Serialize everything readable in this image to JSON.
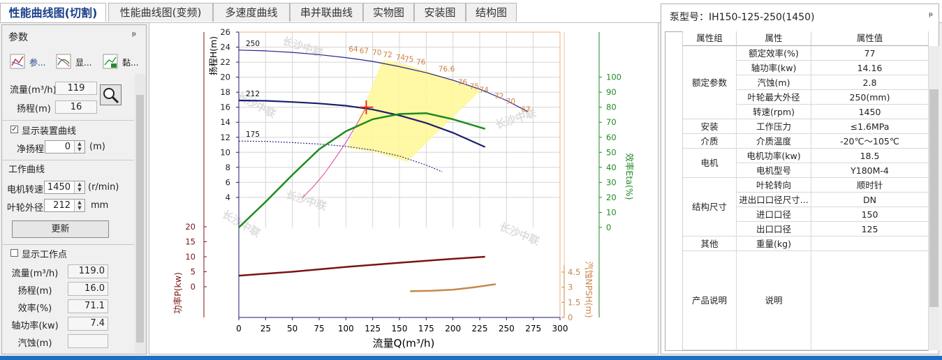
{
  "tabs": [
    "性能曲线图(切割)",
    "性能曲线图(变频)",
    "多速度曲线",
    "串并联曲线",
    "实物图",
    "安装图",
    "结构图"
  ],
  "panel": {
    "title": "参数",
    "toolbar": [
      "参...",
      "显...",
      "黏..."
    ],
    "query": {
      "flow_label": "流量(m³/h)",
      "flow": "119",
      "head_label": "扬程(m)",
      "head": "16"
    },
    "system": {
      "checkbox": "显示装置曲线",
      "static_head_label": "净扬程",
      "static_head": "0",
      "unit": "(m)"
    },
    "working": {
      "heading": "工作曲线",
      "speed_label": "电机转速",
      "speed": "1450",
      "speed_unit": "(r/min)",
      "diameter_label": "叶轮外径",
      "diameter": "212",
      "diameter_unit": "mm",
      "button": "更新"
    },
    "point": {
      "checkbox": "显示工作点",
      "rows": [
        [
          "流量(m³/h)",
          "119.0"
        ],
        [
          "扬程(m)",
          "16.0"
        ],
        [
          "效率(%)",
          "71.1"
        ],
        [
          "轴功率(kw)",
          "7.4"
        ],
        [
          "汽蚀(m)"
        ]
      ]
    }
  },
  "chart_data": {
    "type": "line",
    "watermark": "长沙中联",
    "x_label": "流量Q(m³/h)",
    "xlim": [
      0,
      300
    ],
    "xticks": [
      0,
      25,
      50,
      75,
      100,
      125,
      150,
      175,
      200,
      225,
      250,
      275,
      300
    ],
    "y_label": "扬程H(m)",
    "ylim": [
      0,
      26
    ],
    "yticks": [
      4,
      6,
      8,
      10,
      12,
      14,
      16,
      18,
      20,
      22,
      24,
      26
    ],
    "y2_label": "效率Eta(%)",
    "y2lim": [
      0,
      130
    ],
    "y2ticks": [
      0,
      10,
      20,
      30,
      40,
      50,
      60,
      70,
      80,
      90,
      100
    ],
    "y3_label": "功率P(kw)",
    "y3lim": [
      -10,
      20
    ],
    "y3ticks": [
      0,
      5,
      10,
      15,
      20
    ],
    "y4_label": "汽蚀NPSH(m)",
    "y4lim": [
      0,
      4.5
    ],
    "y4ticks": [
      0,
      1.5,
      3,
      4.5
    ],
    "grid": true,
    "series": [
      {
        "name": "250",
        "axis": "y",
        "color": "#25258c",
        "width": 1.2,
        "line_style": "solid",
        "x": [
          0,
          25,
          50,
          75,
          100,
          125,
          150,
          175,
          200,
          225,
          250,
          270
        ],
        "values": [
          23.6,
          23.5,
          23.3,
          23.0,
          22.6,
          22.1,
          21.4,
          20.6,
          19.6,
          18.4,
          16.9,
          15.4
        ]
      },
      {
        "name": "212",
        "axis": "y",
        "color": "#1a1f6e",
        "width": 2.2,
        "line_style": "solid",
        "x": [
          0,
          25,
          50,
          75,
          100,
          125,
          150,
          175,
          200,
          230
        ],
        "values": [
          16.9,
          16.85,
          16.7,
          16.5,
          16.2,
          15.7,
          14.9,
          13.9,
          12.6,
          10.7
        ]
      },
      {
        "name": "175",
        "axis": "y",
        "color": "#2a2a90",
        "width": 1.2,
        "line_style": "dotted",
        "x": [
          0,
          25,
          50,
          75,
          100,
          125,
          150,
          175,
          190
        ],
        "values": [
          11.5,
          11.45,
          11.3,
          11.1,
          10.8,
          10.3,
          9.5,
          8.3,
          7.4
        ]
      },
      {
        "axis": "y",
        "color": "#e0409a",
        "width": 1,
        "line_style": "solid",
        "x": [
          59,
          70,
          80,
          90,
          100,
          110,
          119
        ],
        "values": [
          3.9,
          5.5,
          7.2,
          9.2,
          11.3,
          13.7,
          16.0
        ]
      },
      {
        "axis": "y2",
        "color": "#1e8a1e",
        "width": 2.5,
        "line_style": "solid",
        "x": [
          0,
          25,
          50,
          75,
          100,
          125,
          150,
          175,
          200,
          230
        ],
        "values": [
          0,
          17,
          35,
          52,
          64,
          72,
          75.5,
          76,
          72,
          65.6
        ]
      },
      {
        "axis": "y3",
        "color": "#7a1414",
        "width": 2.5,
        "line_style": "solid",
        "x": [
          0,
          50,
          100,
          150,
          200,
          230
        ],
        "values": [
          3.7,
          5.0,
          6.6,
          8.0,
          9.3,
          10.0
        ]
      },
      {
        "axis": "y4",
        "color": "#c8864a",
        "width": 2.5,
        "line_style": "solid",
        "x": [
          160,
          180,
          200,
          220,
          240
        ],
        "values": [
          2.6,
          2.65,
          2.75,
          3.0,
          3.3
        ]
      }
    ],
    "efficiency_labels": {
      "color": "#d08040",
      "x": [
        107,
        117,
        129,
        139,
        151,
        159,
        170,
        194,
        209,
        220,
        229,
        243,
        254,
        268
      ],
      "values": [
        64,
        67,
        70,
        72,
        74,
        75,
        76,
        76.6,
        76,
        75,
        74,
        72,
        70,
        67
      ]
    },
    "operating_point": {
      "x": 119,
      "y": 16,
      "color": "#e02020"
    }
  },
  "details": {
    "title": "泵型号：IH150-125-250(1450)",
    "columns": [
      "属性组",
      "属性",
      "属性值"
    ],
    "groups": [
      {
        "name": "额定参数",
        "rows": [
          [
            "额定效率(%)",
            "77"
          ],
          [
            "轴功率(kw)",
            "14.16"
          ],
          [
            "汽蚀(m)",
            "2.8"
          ],
          [
            "叶轮最大外径",
            "250(mm)"
          ],
          [
            "转速(rpm)",
            "1450"
          ]
        ]
      },
      {
        "name": "安装",
        "rows": [
          [
            "工作压力",
            "≤1.6MPa"
          ]
        ]
      },
      {
        "name": "介质",
        "rows": [
          [
            "介质温度",
            "-20℃～105℃"
          ]
        ]
      },
      {
        "name": "电机",
        "rows": [
          [
            "电机功率(kw)",
            "18.5"
          ],
          [
            "电机型号",
            "Y180M-4"
          ]
        ]
      },
      {
        "name": "结构尺寸",
        "rows": [
          [
            "叶轮转向",
            "顺时针"
          ],
          [
            "进出口口径尺寸...",
            "DN"
          ],
          [
            "进口口径",
            "150"
          ],
          [
            "出口口径",
            "125"
          ]
        ]
      },
      {
        "name": "其他",
        "rows": [
          [
            "重量(kg)"
          ]
        ]
      },
      {
        "name": "产品说明",
        "rows": [
          [
            "说明"
          ]
        ]
      }
    ]
  }
}
